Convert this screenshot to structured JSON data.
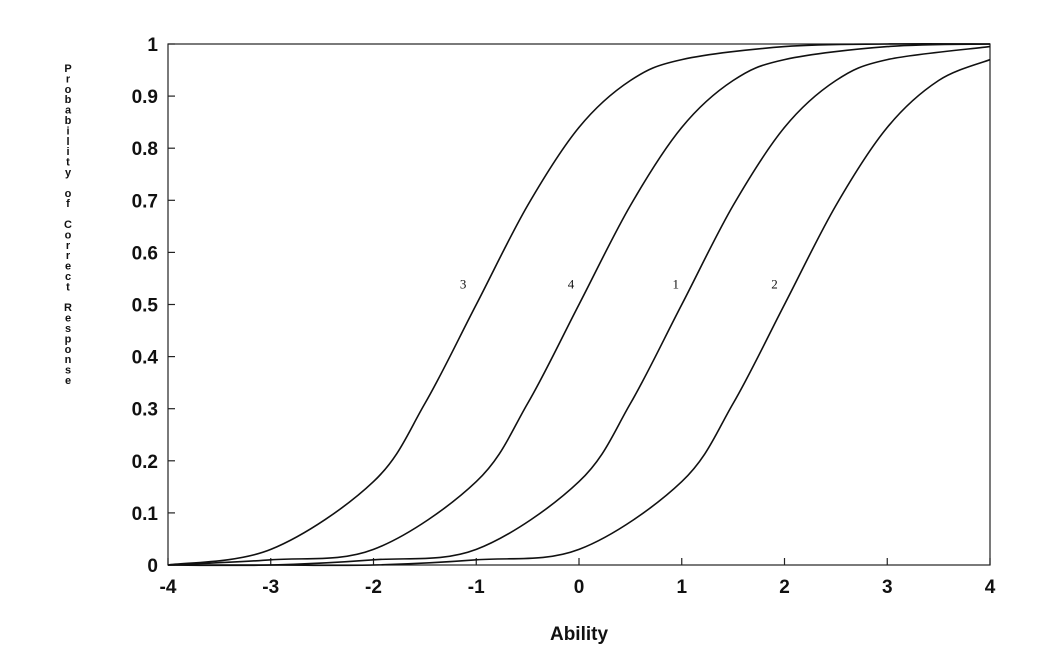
{
  "chart_data": {
    "type": "line",
    "title": "",
    "xlabel": "Ability",
    "ylabel": "Probability of Correct Response",
    "xlim": [
      -4,
      4
    ],
    "ylim": [
      0,
      1
    ],
    "x_ticks": [
      -4,
      -3,
      -2,
      -1,
      0,
      1,
      2,
      3,
      4
    ],
    "y_ticks": [
      0,
      0.1,
      0.2,
      0.3,
      0.4,
      0.5,
      0.6,
      0.7,
      0.8,
      0.9,
      1
    ],
    "x_tick_labels": [
      "-4",
      "-3",
      "-2",
      "-1",
      "0",
      "1",
      "2",
      "3",
      "4"
    ],
    "y_tick_labels": [
      "0",
      "0.1",
      "0.2",
      "0.3",
      "0.4",
      "0.5",
      "0.6",
      "0.7",
      "0.8",
      "0.9",
      "1"
    ],
    "grid": false,
    "legend": "none",
    "series": [
      {
        "name": "3",
        "x": [
          -4,
          -3,
          -2,
          -1.5,
          -1,
          -0.5,
          0,
          0.5,
          1,
          2,
          3,
          4
        ],
        "y": [
          0.0,
          0.03,
          0.16,
          0.31,
          0.5,
          0.69,
          0.84,
          0.93,
          0.97,
          0.995,
          1.0,
          1.0
        ]
      },
      {
        "name": "4",
        "x": [
          -4,
          -3,
          -2,
          -1,
          -0.5,
          0,
          0.5,
          1,
          1.5,
          2,
          3,
          4
        ],
        "y": [
          0.0,
          0.01,
          0.03,
          0.16,
          0.31,
          0.5,
          0.69,
          0.84,
          0.93,
          0.97,
          0.995,
          1.0
        ]
      },
      {
        "name": "1",
        "x": [
          -4,
          -3,
          -2,
          -1,
          0,
          0.5,
          1,
          1.5,
          2,
          2.5,
          3,
          4
        ],
        "y": [
          0.0,
          0.0,
          0.01,
          0.03,
          0.16,
          0.31,
          0.5,
          0.69,
          0.84,
          0.93,
          0.97,
          0.995
        ]
      },
      {
        "name": "2",
        "x": [
          -4,
          -3,
          -2,
          -1,
          0,
          1,
          1.5,
          2,
          2.5,
          3,
          3.5,
          4
        ],
        "y": [
          0.0,
          0.0,
          0.0,
          0.01,
          0.03,
          0.16,
          0.31,
          0.5,
          0.69,
          0.84,
          0.93,
          0.97
        ]
      }
    ],
    "annotations": [
      {
        "text": "3",
        "x": -1.05,
        "y": 0.54
      },
      {
        "text": "4",
        "x": 0.0,
        "y": 0.54
      },
      {
        "text": "1",
        "x": 1.02,
        "y": 0.54
      },
      {
        "text": "2",
        "x": 1.98,
        "y": 0.54
      }
    ]
  }
}
